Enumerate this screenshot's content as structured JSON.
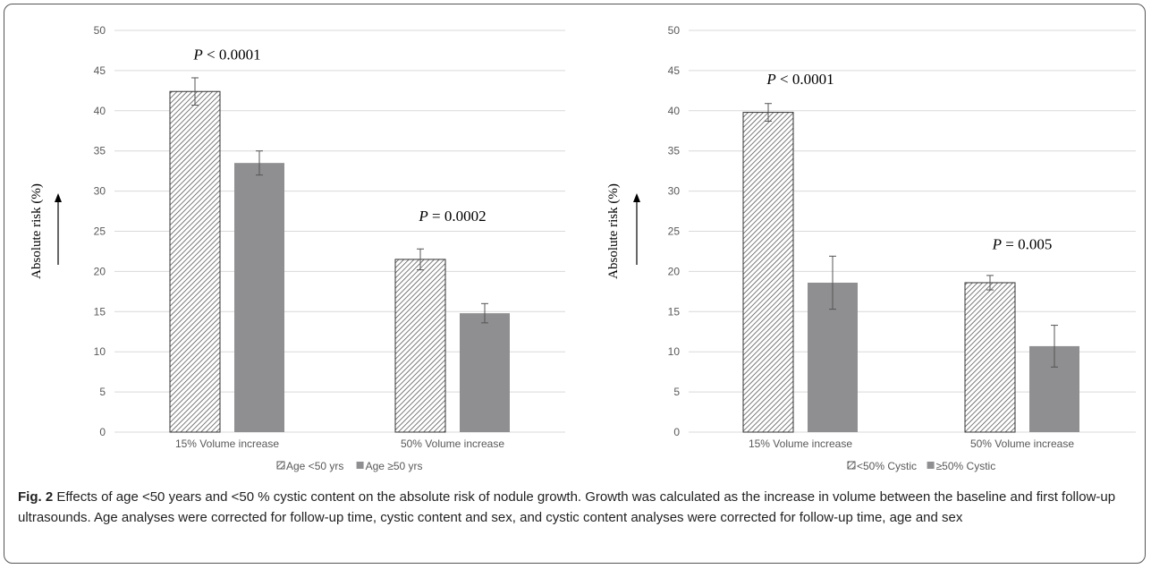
{
  "chart_data": [
    {
      "type": "bar",
      "categories": [
        "15% Volume increase",
        "50% Volume increase"
      ],
      "series": [
        {
          "name": "Age <50 yrs",
          "values": [
            42.4,
            21.5
          ],
          "errors": [
            1.7,
            1.3
          ],
          "pattern": "hatched",
          "color": "#ffffff"
        },
        {
          "name": "Age ≥50 yrs",
          "values": [
            33.5,
            14.8
          ],
          "errors": [
            1.5,
            1.2
          ],
          "pattern": "solid",
          "color": "#8f8f91"
        }
      ],
      "ylabel": "Absolute risk (%)",
      "ylim": [
        0,
        50
      ],
      "yticks": [
        0,
        5,
        10,
        15,
        20,
        25,
        30,
        35,
        40,
        45,
        50
      ],
      "grid": true,
      "legend": "bottom",
      "annotations": [
        {
          "category": 0,
          "prefix": "P",
          "text": " < 0.0001",
          "at": 46.4
        },
        {
          "category": 1,
          "prefix": "P",
          "text": " = 0.0002",
          "at": 26.3
        }
      ]
    },
    {
      "type": "bar",
      "categories": [
        "15% Volume increase",
        "50% Volume increase"
      ],
      "series": [
        {
          "name": "<50% Cystic",
          "values": [
            39.8,
            18.6
          ],
          "errors": [
            1.1,
            0.9
          ],
          "pattern": "hatched",
          "color": "#ffffff"
        },
        {
          "name": "≥50% Cystic",
          "values": [
            18.6,
            10.7
          ],
          "errors": [
            3.3,
            2.6
          ],
          "pattern": "solid",
          "color": "#8f8f91"
        }
      ],
      "ylabel": "Absolute risk (%)",
      "ylim": [
        0,
        50
      ],
      "yticks": [
        0,
        5,
        10,
        15,
        20,
        25,
        30,
        35,
        40,
        45,
        50
      ],
      "grid": true,
      "legend": "bottom",
      "annotations": [
        {
          "category": 0,
          "prefix": "P",
          "text": " < 0.0001",
          "at": 43.3
        },
        {
          "category": 1,
          "prefix": "P",
          "text": " = 0.005",
          "at": 22.8
        }
      ]
    }
  ],
  "caption": {
    "label": "Fig. 2",
    "text": " Effects of age <50 years and <50 % cystic content on the absolute risk of nodule growth. Growth was calculated as the increase in volume between the baseline and first follow-up ultrasounds. Age analyses were corrected for follow-up time, cystic content and sex, and cystic content analyses were corrected for follow-up time, age and sex"
  },
  "colors": {
    "grid": "#d9d9d9",
    "bar_edge": "#333333",
    "hatch": "#444444",
    "text": "#595959"
  }
}
